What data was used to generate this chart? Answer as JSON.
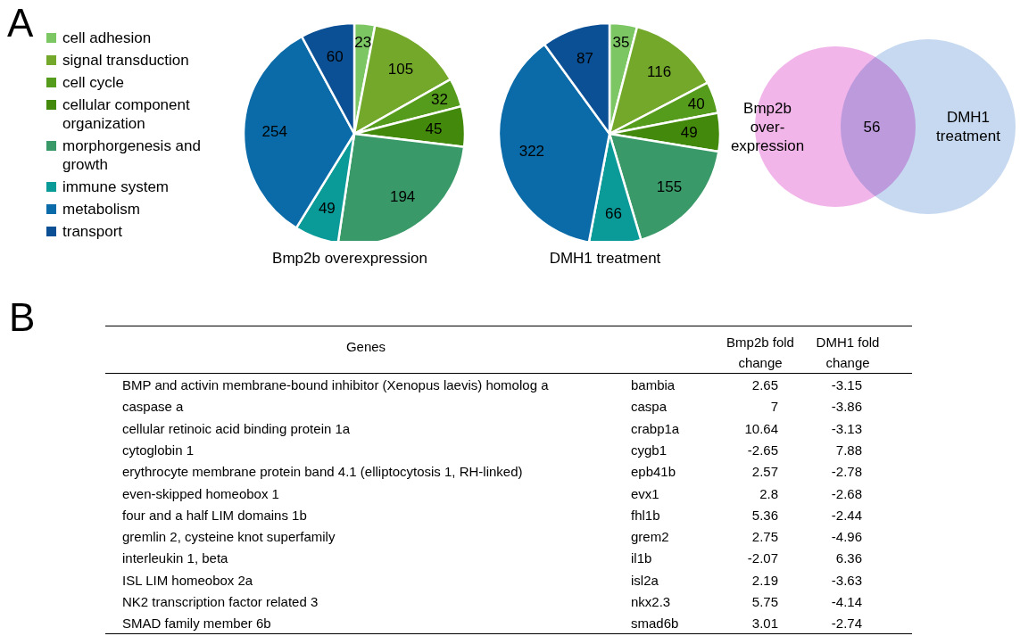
{
  "chart_data": [
    {
      "type": "pie",
      "title": "Bmp2b overexpression",
      "annotations": [
        "A"
      ],
      "legend": "left",
      "data_labels": true,
      "categories": [
        "cell adhesion",
        "signal transduction",
        "cell cycle",
        "cellular component organization",
        "morphorgenesis and growth",
        "immune system",
        "metabolism",
        "transport"
      ],
      "values": [
        23,
        105,
        32,
        45,
        194,
        49,
        254,
        60
      ],
      "colors": [
        "#7dc664",
        "#74a82a",
        "#559c1c",
        "#438a0c",
        "#3a9968",
        "#0a9a98",
        "#0b6ba8",
        "#0b4f94"
      ]
    },
    {
      "type": "pie",
      "title": "DMH1 treatment",
      "data_labels": true,
      "values": [
        35,
        116,
        40,
        49,
        155,
        66,
        322,
        87
      ],
      "colors": [
        "#7dc664",
        "#74a82a",
        "#559c1c",
        "#438a0c",
        "#3a9968",
        "#0a9a98",
        "#0b6ba8",
        "#0b4f94"
      ]
    },
    {
      "type": "other",
      "categories": [
        "Bmp2b over-expression",
        "DMH1 treatment"
      ],
      "colors": [
        "#f2b5ea",
        "#a0bfe6"
      ],
      "annotations": [
        "56"
      ]
    },
    {
      "type": "other",
      "title": "Genes",
      "annotations": [
        "B"
      ],
      "data_labels": true,
      "categories": [
        "BMP and activin membrane-bound inhibitor (Xenopus laevis) homolog a",
        "caspase a",
        "cellular retinoic acid binding protein 1a",
        "cytoglobin 1",
        "erythrocyte membrane protein band 4.1 (elliptocytosis 1, RH-linked)",
        "even-skipped homeobox 1",
        "four and a half LIM domains 1b",
        "gremlin 2, cysteine knot superfamily",
        "interleukin 1, beta",
        "ISL LIM homeobox 2a",
        "NK2 transcription factor related 3",
        "SMAD family member 6b"
      ],
      "y2_categories": [
        "bambia",
        "caspa",
        "crabp1a",
        "cygb1",
        "epb41b",
        "evx1",
        "fhl1b",
        "grem2",
        "il1b",
        "isl2a",
        "nkx2.3",
        "smad6b"
      ],
      "series": [
        {
          "name": "Bmp2b fold change",
          "values": [
            2.65,
            7,
            10.64,
            -2.65,
            2.57,
            2.8,
            5.36,
            2.75,
            -2.07,
            2.19,
            5.75,
            3.01
          ]
        },
        {
          "name": "DMH1 fold change",
          "values": [
            -3.15,
            -3.86,
            -3.13,
            7.88,
            -2.78,
            -2.68,
            -2.44,
            -4.96,
            6.36,
            -3.63,
            -4.14,
            -2.74
          ]
        }
      ]
    }
  ]
}
